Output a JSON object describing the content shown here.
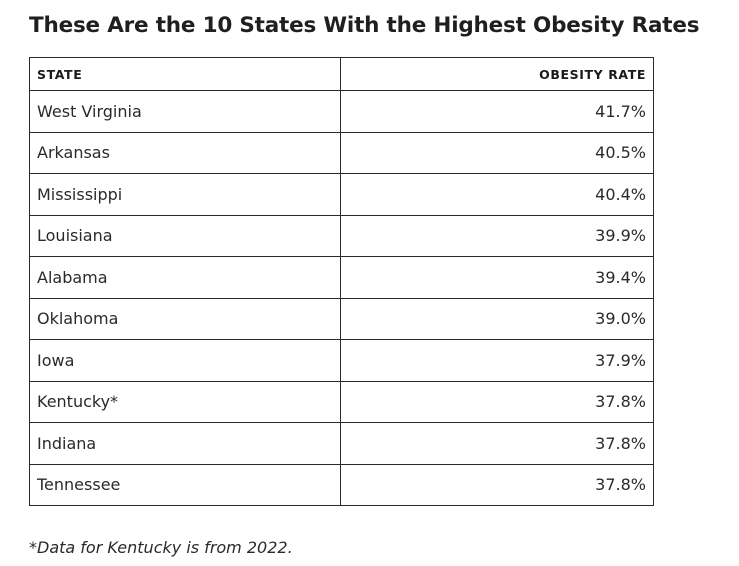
{
  "title": "These Are the 10 States With the Highest Obesity Rates",
  "table": {
    "headers": [
      "STATE",
      "OBESITY RATE"
    ],
    "rows": [
      [
        "West Virginia",
        "41.7%"
      ],
      [
        "Arkansas",
        "40.5%"
      ],
      [
        "Mississippi",
        "40.4%"
      ],
      [
        "Louisiana",
        "39.9%"
      ],
      [
        "Alabama",
        "39.4%"
      ],
      [
        "Oklahoma",
        "39.0%"
      ],
      [
        "Iowa",
        "37.9%"
      ],
      [
        "Kentucky*",
        "37.8%"
      ],
      [
        "Indiana",
        "37.8%"
      ],
      [
        "Tennessee",
        "37.8%"
      ]
    ]
  },
  "footnote": "*Data for Kentucky is from 2022."
}
